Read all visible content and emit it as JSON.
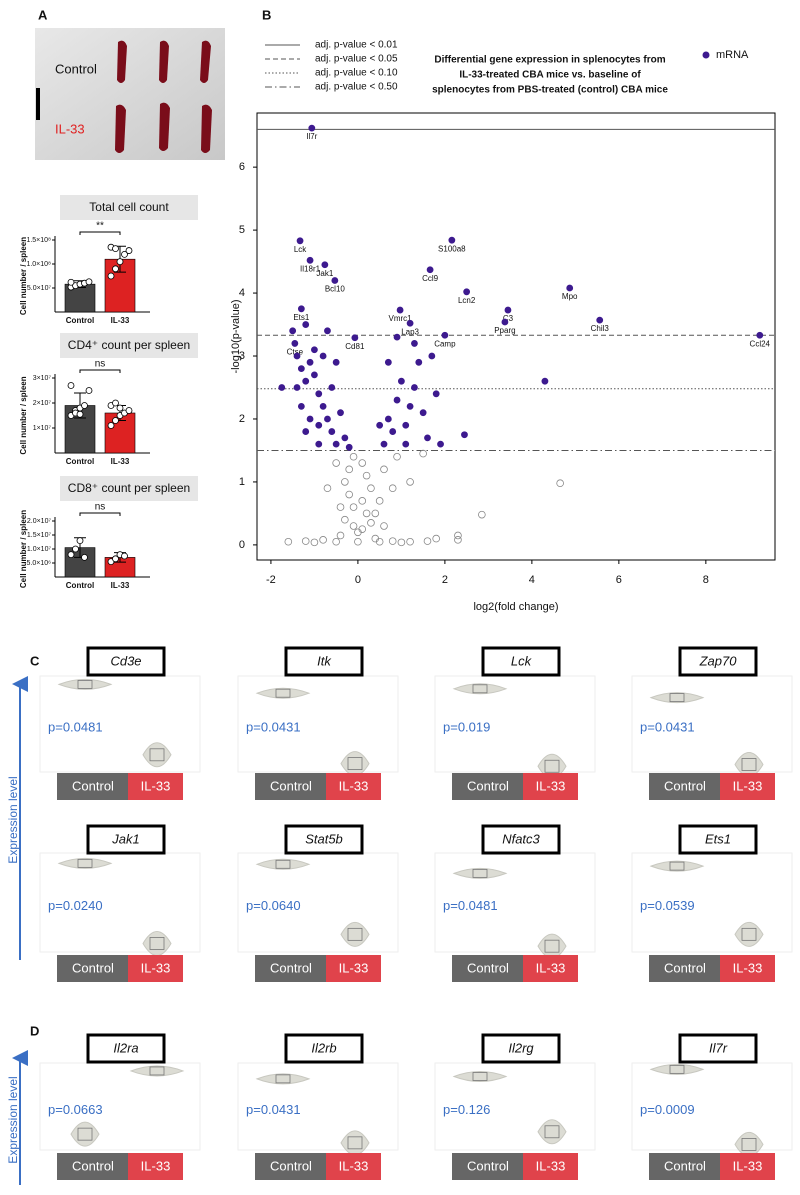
{
  "panels": [
    "A",
    "B",
    "C",
    "D"
  ],
  "photo": {
    "labels": [
      "Control",
      "IL-33"
    ]
  },
  "expression_axis_label": [
    "Expression level",
    "Expression level"
  ],
  "chart_data": [
    {
      "type": "bar",
      "title": "Total cell count",
      "ylabel": "Cell number / spleen",
      "categories": [
        "Control",
        "IL-33"
      ],
      "values": [
        58000000,
        110000000
      ],
      "errors": [
        7000000,
        27000000
      ],
      "colors": [
        "#444444",
        "#dd2222"
      ],
      "points": [
        [
          52000000,
          55000000,
          58000000,
          60000000,
          63000000,
          62000000
        ],
        [
          75000000,
          90000000,
          105000000,
          120000000,
          128000000,
          135000000,
          132000000
        ]
      ],
      "ylim": [
        0,
        150000000
      ],
      "yticks": [
        {
          "value": 50000000,
          "label": "5.0×10⁷"
        },
        {
          "value": 100000000,
          "label": "1.0×10⁸"
        },
        {
          "value": 150000000,
          "label": "1.5×10⁸"
        }
      ],
      "significance": "**"
    },
    {
      "type": "bar",
      "title": "CD4⁺ count per spleen",
      "ylabel": "Cell number / spleen",
      "categories": [
        "Control",
        "IL-33"
      ],
      "values": [
        19000000,
        16000000
      ],
      "errors": [
        5000000,
        3000000
      ],
      "colors": [
        "#444444",
        "#dd2222"
      ],
      "points": [
        [
          15000000,
          17000000,
          18000000,
          19000000,
          25000000,
          27000000,
          16000000,
          15500000
        ],
        [
          11000000,
          13000000,
          15000000,
          16000000,
          17000000,
          19000000,
          20000000,
          18000000
        ]
      ],
      "ylim": [
        0,
        30000000
      ],
      "yticks": [
        {
          "value": 10000000,
          "label": "1×10⁷"
        },
        {
          "value": 20000000,
          "label": "2×10⁷"
        },
        {
          "value": 30000000,
          "label": "3×10⁷"
        }
      ],
      "significance": "ns"
    },
    {
      "type": "bar",
      "title": "CD8⁺ count per spleen",
      "ylabel": "Cell number / spleen",
      "categories": [
        "Control",
        "IL-33"
      ],
      "values": [
        10500000,
        7000000
      ],
      "errors": [
        3500000,
        1700000
      ],
      "colors": [
        "#444444",
        "#dd2222"
      ],
      "points": [
        [
          8000000,
          10000000,
          13000000,
          7000000
        ],
        [
          5500000,
          6500000,
          8000000,
          7500000
        ]
      ],
      "ylim": [
        0,
        20000000
      ],
      "yticks": [
        {
          "value": 5000000,
          "label": "5.0×10⁶"
        },
        {
          "value": 10000000,
          "label": "1.0×10⁷"
        },
        {
          "value": 15000000,
          "label": "1.5×10⁷"
        },
        {
          "value": 20000000,
          "label": "2.0×10⁷"
        }
      ],
      "significance": "ns"
    },
    {
      "type": "scatter",
      "title": [
        "Differential gene expression in splenocytes from",
        "IL-33-treated CBA mice vs. baseline of",
        "splenocytes from PBS-treated (control) CBA mice"
      ],
      "xlabel": "log2(fold change)",
      "ylabel": "-log10(p-value)",
      "xlim": [
        -2.32,
        9.59
      ],
      "xticks": [
        -2,
        0,
        2,
        4,
        6,
        8
      ],
      "ylim": [
        -0.24,
        6.86
      ],
      "yticks": [
        0,
        1,
        2,
        3,
        4,
        5,
        6
      ],
      "thresholds": [
        {
          "label": "adj. p-value < 0.01",
          "value": 6.6,
          "dash": "solid"
        },
        {
          "label": "adj. p-value < 0.05",
          "value": 3.33,
          "dash": "dashed"
        },
        {
          "label": "adj. p-value < 0.10",
          "value": 2.48,
          "dash": "dotted"
        },
        {
          "label": "adj. p-value < 0.50",
          "value": 1.5,
          "dash": "dashdot"
        }
      ],
      "series": [
        {
          "name": "mRNA",
          "color": "#3d1a8f",
          "x": [
            -1.06,
            -1.33,
            -1.1,
            -0.76,
            -0.53,
            -1.3,
            -1.45,
            -0.07,
            0.97,
            1.2,
            2.0,
            2.16,
            1.66,
            2.5,
            3.45,
            3.38,
            4.87,
            5.56,
            9.24,
            -1.5,
            -1.4,
            -1.3,
            -1.2,
            -1.1,
            -1.0,
            -0.9,
            -0.8,
            -0.7,
            -0.6,
            -0.5,
            -1.3,
            -1.1,
            -0.9,
            -1.0,
            -0.8,
            -0.6,
            -0.5,
            -0.4,
            -1.2,
            -0.7,
            -0.3,
            -1.4,
            -1.75,
            -0.9,
            -1.2,
            0.6,
            0.7,
            0.8,
            0.9,
            1.0,
            1.1,
            1.2,
            1.3,
            1.4,
            1.5,
            1.6,
            1.7,
            1.3,
            0.9,
            1.8,
            2.45,
            4.3,
            0.7,
            1.9,
            1.1,
            0.5,
            -0.2
          ],
          "values": [
            6.62,
            4.83,
            4.52,
            4.45,
            4.2,
            3.75,
            3.2,
            3.29,
            3.73,
            3.52,
            3.33,
            4.84,
            4.37,
            4.02,
            3.73,
            3.54,
            4.08,
            3.57,
            3.33,
            3.4,
            3.0,
            2.8,
            2.6,
            2.9,
            3.1,
            2.4,
            2.2,
            2.0,
            1.8,
            1.6,
            2.2,
            2.0,
            1.9,
            2.7,
            3.0,
            2.5,
            2.9,
            2.1,
            3.5,
            3.4,
            1.7,
            2.5,
            2.5,
            1.6,
            1.8,
            1.6,
            2.0,
            1.8,
            2.3,
            2.6,
            1.9,
            2.2,
            2.5,
            2.9,
            2.1,
            1.7,
            3.0,
            3.2,
            3.3,
            2.4,
            1.75,
            2.6,
            2.9,
            1.6,
            1.6,
            1.9,
            1.55
          ],
          "labels": [
            "Il7r",
            "Lck",
            "Il18r1",
            "Jak1",
            "Bcl10",
            "Ets1",
            "Ctse",
            "Cd81",
            "Vmrc1",
            "Lap3",
            "Camp",
            "S100a8",
            "Ccl9",
            "Lcn2",
            "C3",
            "Pparg",
            "Mpo",
            "Chil3",
            "Ccl24",
            null,
            null,
            null,
            null,
            null,
            null,
            null,
            null,
            null,
            null,
            null,
            null,
            null,
            null,
            null,
            null,
            null,
            null,
            null,
            null,
            null,
            null,
            null,
            null,
            null,
            null,
            null,
            null,
            null,
            null,
            null,
            null,
            null,
            null,
            null,
            null,
            null,
            null,
            null,
            null,
            null,
            null,
            null,
            null,
            null,
            null,
            null,
            null
          ]
        },
        {
          "color": "#888888",
          "x": [
            -0.1,
            0.1,
            -0.2,
            0.2,
            -0.3,
            0.3,
            -0.2,
            0.1,
            -0.1,
            0.2,
            -0.3,
            0.3,
            -0.1,
            0.1,
            0.0,
            -0.4,
            0.4,
            -0.8,
            0.8,
            -1.2,
            1.2,
            -1.6,
            1.6,
            -0.5,
            0.5,
            0.0,
            1.0,
            -1.0,
            2.3,
            2.3,
            2.85,
            4.65,
            0.6,
            0.9,
            1.2,
            1.5,
            -0.5,
            -0.7,
            0.5,
            0.8,
            1.8,
            -0.4,
            0.4,
            0.6
          ],
          "values": [
            1.4,
            1.3,
            1.2,
            1.1,
            1.0,
            0.9,
            0.8,
            0.7,
            0.6,
            0.5,
            0.4,
            0.35,
            0.3,
            0.25,
            0.2,
            0.15,
            0.1,
            0.08,
            0.06,
            0.06,
            0.05,
            0.05,
            0.06,
            0.05,
            0.05,
            0.05,
            0.04,
            0.04,
            0.15,
            0.08,
            0.48,
            0.98,
            1.2,
            1.4,
            1.0,
            1.45,
            1.3,
            0.9,
            0.7,
            0.9,
            0.1,
            0.6,
            0.5,
            0.3
          ]
        }
      ]
    },
    {
      "type": "violin",
      "title": "Cd3e",
      "annotation": "p=0.0481",
      "categories": [
        "Control",
        "IL-33"
      ],
      "values": [
        0.95,
        0.15
      ],
      "ylim": [
        0,
        1
      ]
    },
    {
      "type": "violin",
      "title": "Itk",
      "annotation": "p=0.0431",
      "categories": [
        "Control",
        "IL-33"
      ],
      "values": [
        0.85,
        0.05
      ],
      "ylim": [
        0,
        1
      ]
    },
    {
      "type": "violin",
      "title": "Lck",
      "annotation": "p=0.019",
      "categories": [
        "Control",
        "IL-33"
      ],
      "values": [
        0.9,
        0.02
      ],
      "ylim": [
        0,
        1
      ]
    },
    {
      "type": "violin",
      "title": "Zap70",
      "annotation": "p=0.0431",
      "categories": [
        "Control",
        "IL-33"
      ],
      "values": [
        0.8,
        0.04
      ],
      "ylim": [
        0,
        1
      ]
    },
    {
      "type": "violin",
      "title": "Jak1",
      "annotation": "p=0.0240",
      "categories": [
        "Control",
        "IL-33"
      ],
      "values": [
        0.93,
        0.05
      ],
      "ylim": [
        0,
        1
      ]
    },
    {
      "type": "violin",
      "title": "Stat5b",
      "annotation": "p=0.0640",
      "categories": [
        "Control",
        "IL-33"
      ],
      "values": [
        0.92,
        0.15
      ],
      "ylim": [
        0,
        1
      ]
    },
    {
      "type": "violin",
      "title": "Nfatc3",
      "annotation": "p=0.0481",
      "categories": [
        "Control",
        "IL-33"
      ],
      "values": [
        0.82,
        0.02
      ],
      "ylim": [
        0,
        1
      ]
    },
    {
      "type": "violin",
      "title": "Ets1",
      "annotation": "p=0.0539",
      "categories": [
        "Control",
        "IL-33"
      ],
      "values": [
        0.9,
        0.15
      ],
      "ylim": [
        0,
        1
      ]
    },
    {
      "type": "violin",
      "title": "Il2ra",
      "annotation": "p=0.0663",
      "categories": [
        "Control",
        "IL-33"
      ],
      "values": [
        0.15,
        0.95
      ],
      "ylim": [
        0,
        1
      ]
    },
    {
      "type": "violin",
      "title": "Il2rb",
      "annotation": "p=0.0431",
      "categories": [
        "Control",
        "IL-33"
      ],
      "values": [
        0.85,
        0.04
      ],
      "ylim": [
        0,
        1
      ]
    },
    {
      "type": "violin",
      "title": "Il2rg",
      "annotation": "p=0.126",
      "categories": [
        "Control",
        "IL-33"
      ],
      "values": [
        0.88,
        0.18
      ],
      "ylim": [
        0,
        1
      ]
    },
    {
      "type": "violin",
      "title": "Il7r",
      "annotation": "p=0.0009",
      "categories": [
        "Control",
        "IL-33"
      ],
      "values": [
        0.97,
        0.02
      ],
      "ylim": [
        0,
        1
      ]
    }
  ]
}
